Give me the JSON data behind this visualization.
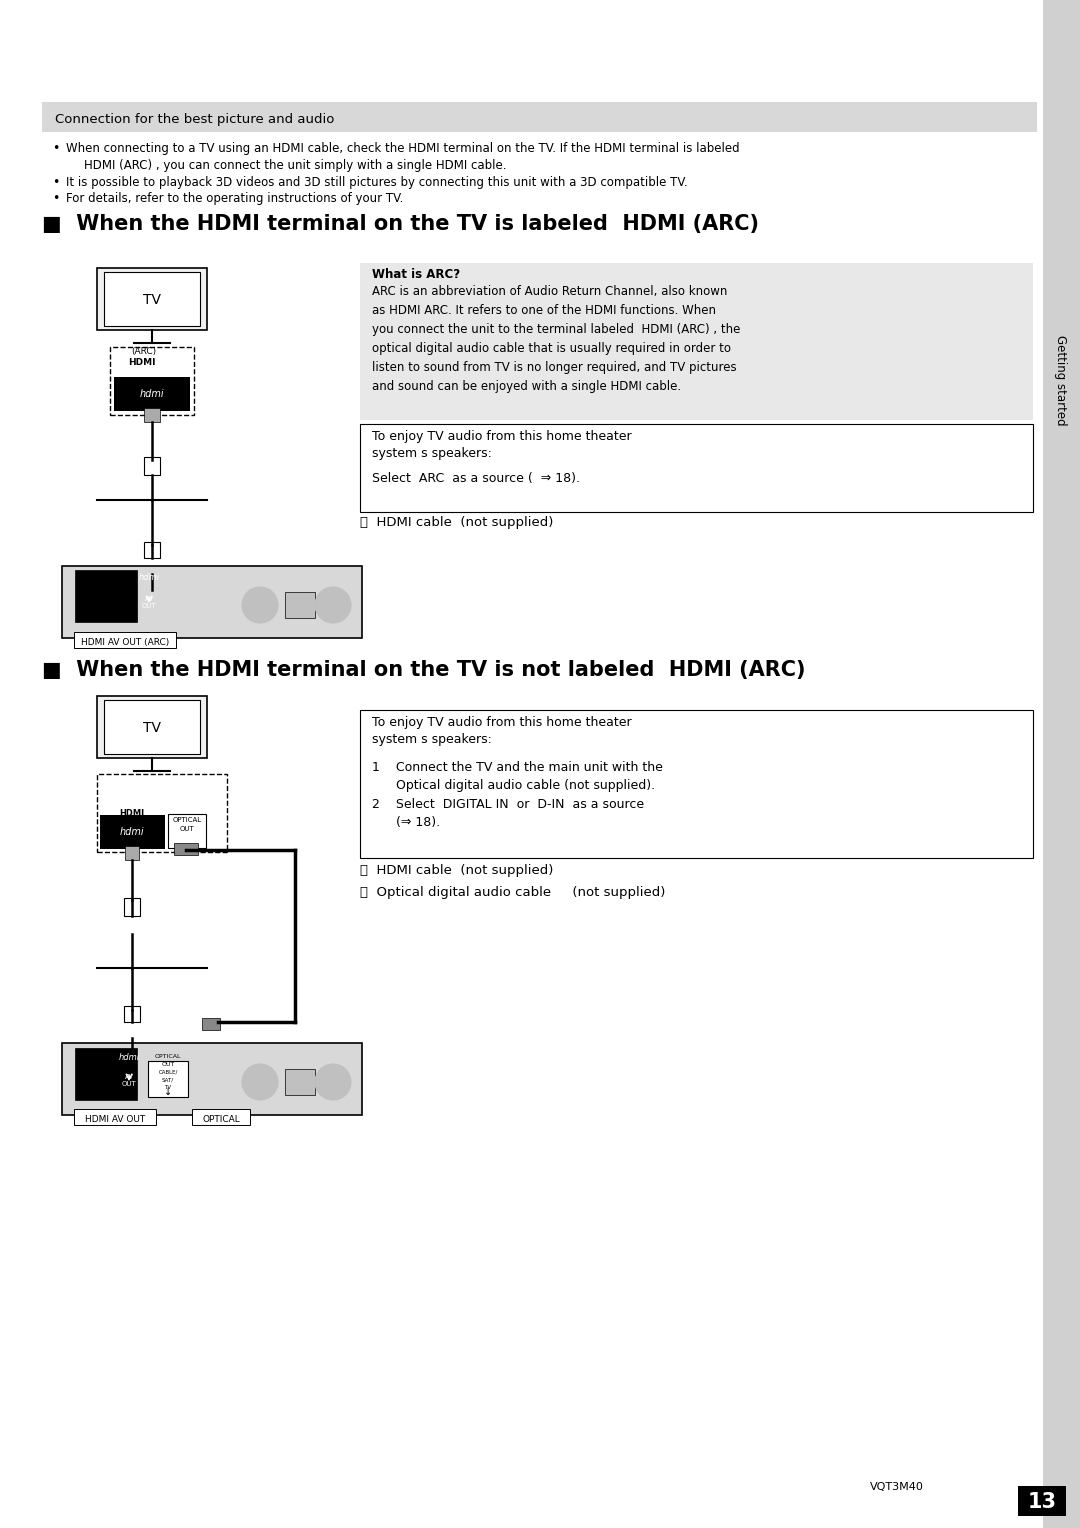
{
  "bg_color": "#ffffff",
  "header_bg": "#d8d8d8",
  "sidebar_bg": "#d0d0d0",
  "info_box_bg": "#e8e8e8",
  "header_text": "Connection for the best picture and audio",
  "bullet1": "When connecting to a TV using an HDMI cable, check the HDMI terminal on the TV. If the HDMI terminal is labeled",
  "bullet1b": "HDMI (ARC) , you can connect the unit simply with a single HDMI cable.",
  "bullet2": "It is possible to playback 3D videos and 3D still pictures by connecting this unit with a 3D compatible TV.",
  "bullet3": "For details, refer to the operating instructions of your TV.",
  "section1_title": "■  When the HDMI terminal on the TV is labeled  HDMI (ARC)",
  "arc_info_title": "What is ARC?",
  "arc_info_line1": "ARC is an abbreviation of Audio Return Channel, also known",
  "arc_info_line2": "as HDMI ARC. It refers to one of the HDMI functions. When",
  "arc_info_line3": "you connect the unit to the terminal labeled  HDMI (ARC) , the",
  "arc_info_line4": "optical digital audio cable that is usually required in order to",
  "arc_info_line5": "listen to sound from TV is no longer required, and TV pictures",
  "arc_info_line6": "and sound can be enjoyed with a single HDMI cable.",
  "enjoy1_line1": "To enjoy TV audio from this home theater",
  "enjoy1_line2": "system s speakers:",
  "enjoy1_line3": "Select  ARC  as a source (  ⇒ 18).",
  "hdmi_cable_a": "Ⓐ  HDMI cable  (not supplied)",
  "section2_title": "■  When the HDMI terminal on the TV is not labeled  HDMI (ARC)",
  "enjoy2_line1": "To enjoy TV audio from this home theater",
  "enjoy2_line2": "system s speakers:",
  "enjoy2_line3": "1    Connect the TV and the main unit with the",
  "enjoy2_line4": "      Optical digital audio cable (not supplied).",
  "enjoy2_line5": "2    Select  DIGITAL IN  or  D-IN  as a source",
  "enjoy2_line6": "      (⇒ 18).",
  "hdmi_cable_a2": "Ⓐ  HDMI cable  (not supplied)",
  "optical_cable_b": "Ⓑ  Optical digital audio cable     (not supplied)",
  "sidebar_text": "Getting started",
  "page_num": "13",
  "doc_code": "VQT3M40",
  "hdmi_av_out_arc": "HDMI AV OUT (ARC)",
  "hdmi_av_out": "HDMI AV OUT",
  "optical_label": "OPTICAL"
}
